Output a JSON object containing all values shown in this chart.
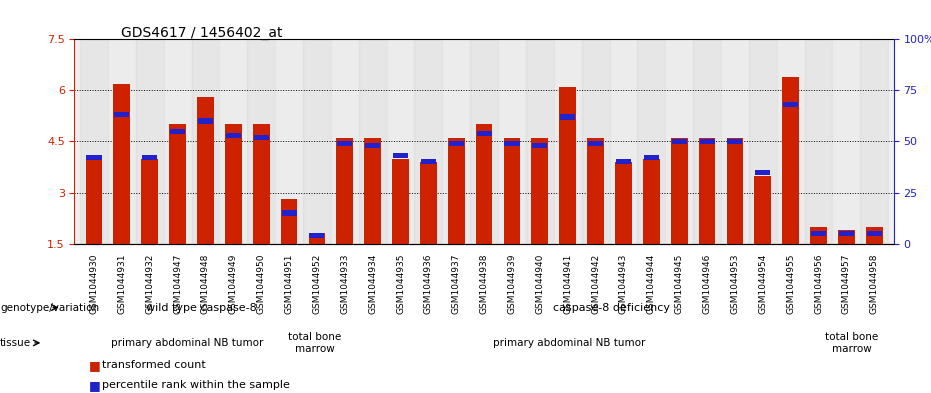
{
  "title": "GDS4617 / 1456402_at",
  "samples": [
    "GSM1044930",
    "GSM1044931",
    "GSM1044932",
    "GSM1044947",
    "GSM1044948",
    "GSM1044949",
    "GSM1044950",
    "GSM1044951",
    "GSM1044952",
    "GSM1044933",
    "GSM1044934",
    "GSM1044935",
    "GSM1044936",
    "GSM1044937",
    "GSM1044938",
    "GSM1044939",
    "GSM1044940",
    "GSM1044941",
    "GSM1044942",
    "GSM1044943",
    "GSM1044944",
    "GSM1044945",
    "GSM1044946",
    "GSM1044953",
    "GSM1044954",
    "GSM1044955",
    "GSM1044956",
    "GSM1044957",
    "GSM1044958"
  ],
  "transformed_count": [
    4.0,
    6.2,
    4.0,
    5.0,
    5.8,
    5.0,
    5.0,
    2.8,
    1.8,
    4.6,
    4.6,
    4.0,
    3.9,
    4.6,
    5.0,
    4.6,
    4.6,
    6.1,
    4.6,
    3.9,
    4.0,
    4.6,
    4.6,
    4.6,
    3.5,
    6.4,
    2.0,
    1.9,
    2.0
  ],
  "percentile_rank": [
    42,
    63,
    42,
    55,
    60,
    53,
    52,
    15,
    4,
    49,
    48,
    43,
    40,
    49,
    54,
    49,
    48,
    62,
    49,
    40,
    42,
    50,
    50,
    50,
    35,
    68,
    5,
    5,
    5
  ],
  "ylim_left": [
    1.5,
    7.5
  ],
  "ylim_right": [
    0,
    100
  ],
  "yticks_left": [
    1.5,
    3.0,
    4.5,
    6.0,
    7.5
  ],
  "yticks_right": [
    0,
    25,
    50,
    75,
    100
  ],
  "ytick_labels_left": [
    "1.5",
    "3",
    "4.5",
    "6",
    "7.5"
  ],
  "ytick_labels_right": [
    "0",
    "25",
    "50",
    "75",
    "100%"
  ],
  "bar_color": "#cc2200",
  "percentile_color": "#2222cc",
  "background_color": "#f0f0f0",
  "grid_color": "#000000",
  "genotype_row": {
    "label": "genotype/variation",
    "groups": [
      {
        "text": "wild type caspase-8",
        "start": 0,
        "end": 8,
        "color": "#99ee99"
      },
      {
        "text": "caspase-8 deficiency",
        "start": 9,
        "end": 28,
        "color": "#66dd66"
      }
    ]
  },
  "tissue_row": {
    "label": "tissue",
    "groups": [
      {
        "text": "primary abdominal NB tumor",
        "start": 0,
        "end": 7,
        "color": "#ee88ee"
      },
      {
        "text": "total bone\nmarrow",
        "start": 8,
        "end": 8,
        "color": "#dd88dd"
      },
      {
        "text": "primary abdominal NB tumor",
        "start": 9,
        "end": 25,
        "color": "#ee88ee"
      },
      {
        "text": "total bone\nmarrow",
        "start": 26,
        "end": 28,
        "color": "#dd88dd"
      }
    ]
  },
  "legend": [
    {
      "color": "#cc2200",
      "label": "transformed count"
    },
    {
      "color": "#2222cc",
      "label": "percentile rank within the sample"
    }
  ]
}
